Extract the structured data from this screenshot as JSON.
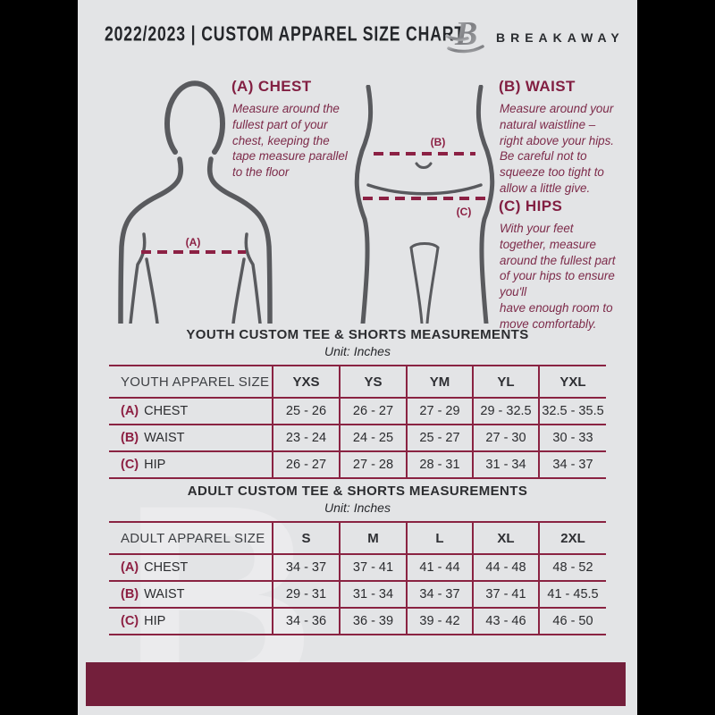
{
  "header": {
    "title": "2022/2023  |  CUSTOM APPAREL SIZE CHART",
    "brand": "BREAKAWAY",
    "logo_icon": "breakaway-b-logo"
  },
  "instructions": {
    "chest": {
      "heading": "(A) CHEST",
      "body": "Measure around the\nfullest part of your\nchest, keeping the\ntape measure parallel\nto the floor"
    },
    "waist": {
      "heading": "(B) WAIST",
      "body": "Measure around your\nnatural waistline –\nright above your hips.\nBe careful not to\nsqueeze too tight to\nallow a little give."
    },
    "hips": {
      "heading": "(C) HIPS",
      "body": "With your feet\ntogether, measure\naround the fullest part\nof your hips to ensure\nyou'll\nhave enough room to\nmove comfortably."
    }
  },
  "figure_labels": {
    "chest": "(A)",
    "waist": "(B)",
    "hips": "(C)"
  },
  "youth_table": {
    "title": "YOUTH CUSTOM TEE & SHORTS MEASUREMENTS",
    "unit": "Unit: Inches",
    "header": [
      "YOUTH APPAREL SIZE",
      "YXS",
      "YS",
      "YM",
      "YL",
      "YXL"
    ],
    "rows": [
      {
        "prefix": "(A)",
        "label": "CHEST",
        "values": [
          "25 - 26",
          "26 - 27",
          "27 - 29",
          "29 - 32.5",
          "32.5 - 35.5"
        ]
      },
      {
        "prefix": "(B)",
        "label": "WAIST",
        "values": [
          "23 - 24",
          "24 - 25",
          "25 - 27",
          "27 - 30",
          "30 - 33"
        ]
      },
      {
        "prefix": "(C)",
        "label": "HIP",
        "values": [
          "26 - 27",
          "27 - 28",
          "28 - 31",
          "31 - 34",
          "34 - 37"
        ]
      }
    ]
  },
  "adult_table": {
    "title": "ADULT CUSTOM TEE & SHORTS MEASUREMENTS",
    "unit": "Unit: Inches",
    "header": [
      "ADULT APPAREL SIZE",
      "S",
      "M",
      "L",
      "XL",
      "2XL"
    ],
    "rows": [
      {
        "prefix": "(A)",
        "label": "CHEST",
        "values": [
          "34 - 37",
          "37 - 41",
          "41 - 44",
          "44 - 48",
          "48 - 52"
        ]
      },
      {
        "prefix": "(B)",
        "label": "WAIST",
        "values": [
          "29 - 31",
          "31 - 34",
          "34 - 37",
          "37 - 41",
          "41 - 45.5"
        ]
      },
      {
        "prefix": "(C)",
        "label": "HIP",
        "values": [
          "34 - 36",
          "36 - 39",
          "39 - 42",
          "43 - 46",
          "46 - 50"
        ]
      }
    ]
  },
  "watermark": "B",
  "colors": {
    "page_bg": "#e3e4e6",
    "side_bars": "#000000",
    "footer_maroon": "#731f3b",
    "table_line_maroon": "#8a2342",
    "accent_maroon": "#8c1f42",
    "body_text_maroon": "#7d2b4a",
    "dark_text": "#25272b",
    "figure_gray": "#595a5e"
  }
}
